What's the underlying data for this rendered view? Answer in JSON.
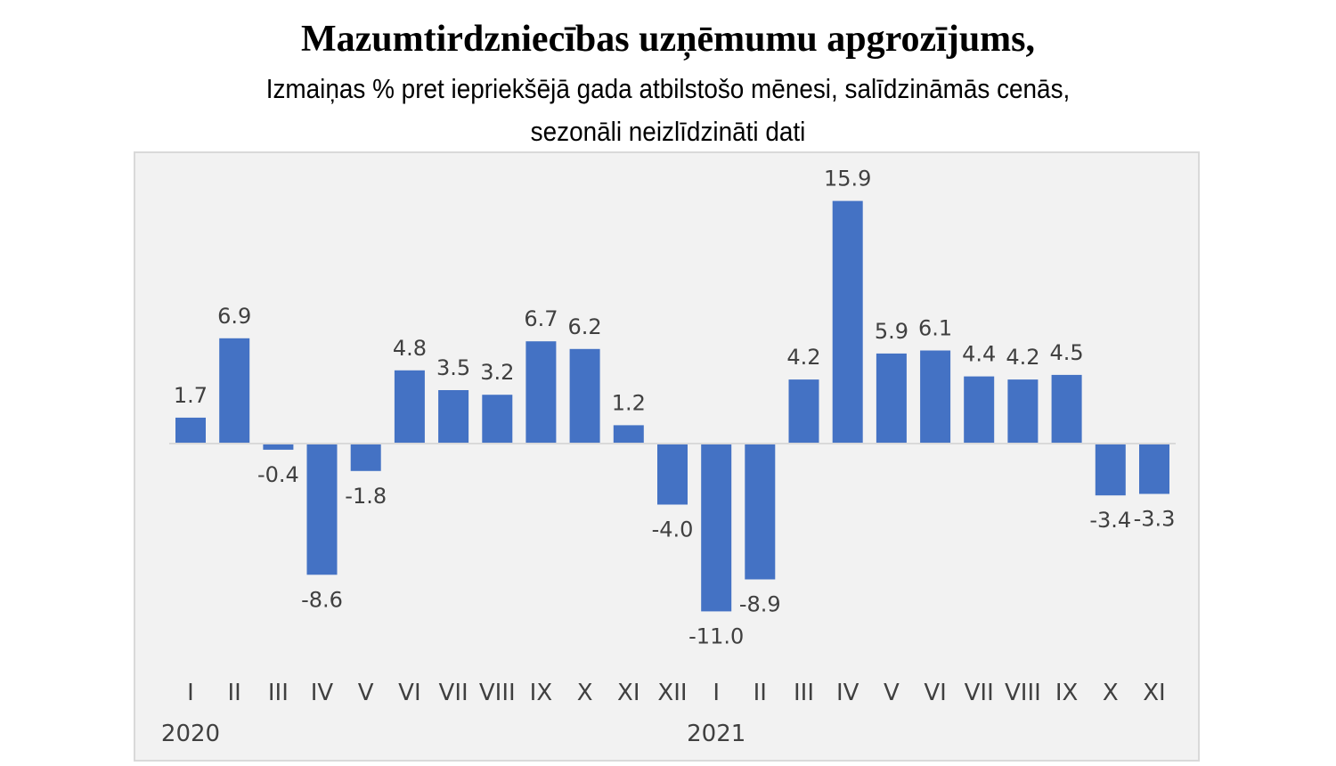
{
  "chart_data": {
    "type": "bar",
    "title": "Mazumtirdzniecības uzņēmumu apgrozījums,",
    "subtitle_line1": "Izmaiņas % pret iepriekšējā gada atbilstošo mēnesi, salīdzināmās cenās,",
    "subtitle_line2": "sezonāli neizlīdzināti dati",
    "categories": [
      "I",
      "II",
      "III",
      "IV",
      "V",
      "VI",
      "VII",
      "VIII",
      "IX",
      "X",
      "XI",
      "XII",
      "I",
      "II",
      "III",
      "IV",
      "V",
      "VI",
      "VII",
      "VIII",
      "IX",
      "X",
      "XI"
    ],
    "values": [
      1.7,
      6.9,
      -0.4,
      -8.6,
      -1.8,
      4.8,
      3.5,
      3.2,
      6.7,
      6.2,
      1.2,
      -4.0,
      -11.0,
      -8.9,
      4.2,
      15.9,
      5.9,
      6.1,
      4.4,
      4.2,
      4.5,
      -3.4,
      -3.3
    ],
    "value_labels": [
      "1.7",
      "6.9",
      "-0.4",
      "-8.6",
      "-1.8",
      "4.8",
      "3.5",
      "3.2",
      "6.7",
      "6.2",
      "1.2",
      "-4.0",
      "-11.0",
      "-8.9",
      "4.2",
      "15.9",
      "5.9",
      "6.1",
      "4.4",
      "4.2",
      "4.5",
      "-3.4",
      "-3.3"
    ],
    "years": [
      {
        "label": "2020",
        "start_index": 0
      },
      {
        "label": "2021",
        "start_index": 12
      }
    ],
    "bar_color": "#4472C4",
    "plot_background": "#F2F2F2",
    "grid": false,
    "legend": "none"
  }
}
